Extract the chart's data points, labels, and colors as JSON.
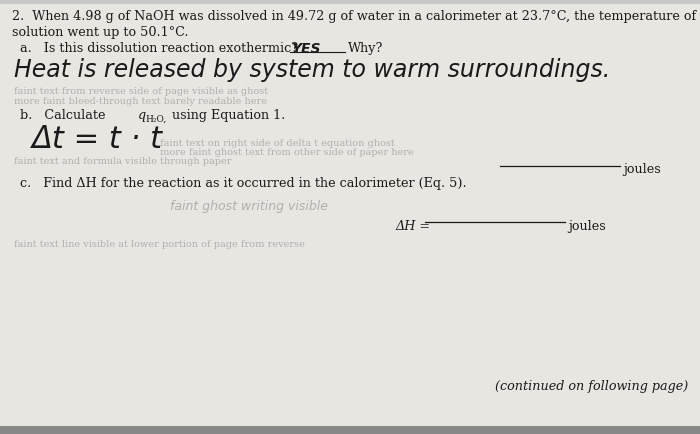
{
  "bg_color": "#c8c8c8",
  "paper_color": "#e8e6e0",
  "text_color": "#1a1a1a",
  "handwriting_color": "#1a1a1a",
  "faint_color": "#b0b0b0",
  "fig_width": 7.0,
  "fig_height": 4.35,
  "dpi": 100,
  "header1": "2.  When 4.98 g of NaOH was dissolved in 49.72 g of water in a calorimeter at 23.7°C, the temperature of the",
  "header2": "solution went up to 50.1°C.",
  "part_a_prompt": "a.   Is this dissolution reaction exothermic?",
  "part_a_answer": "YES",
  "part_a_why": "Why?",
  "part_a_handwrite": "Heat is released by system to warm surroundings.",
  "part_b_prompt1": "b.   Calculate ",
  "part_b_q": "q",
  "part_b_sub": "H₂O,",
  "part_b_prompt2": " using Equation 1.",
  "part_b_handwrite": "Δt = t · t",
  "part_b_joules": "joules",
  "part_c_prompt": "c.   Find ΔH for the reaction as it occurred in the calorimeter (Eq. 5).",
  "part_c_dh": "ΔH =",
  "part_c_joules": "joules",
  "footer": "(continued on following page)",
  "faint_lines_mid": "faint background text visible through page from other side",
  "faint_lines_bot": "faint text visible at bottom from reverse side of page"
}
